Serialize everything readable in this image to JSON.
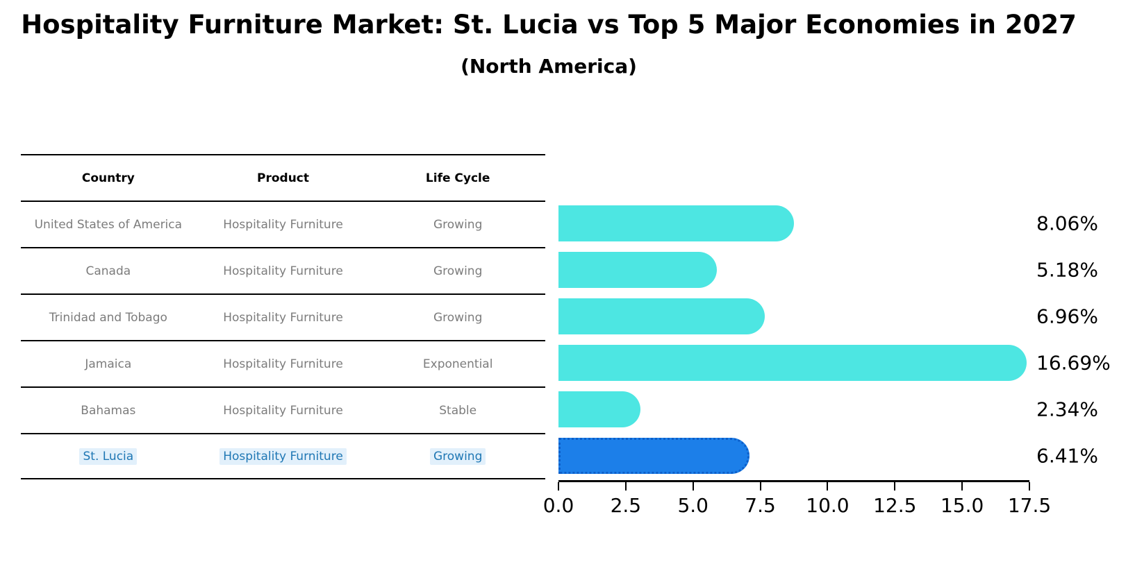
{
  "title": "Hospitality Furniture Market: St. Lucia vs Top 5 Major Economies in 2027",
  "subtitle": "(North America)",
  "table": {
    "headers": [
      "Country",
      "Product",
      "Life Cycle"
    ],
    "rows": [
      {
        "country": "United States of America",
        "product": "Hospitality Furniture",
        "life_cycle": "Growing",
        "highlight": false
      },
      {
        "country": "Canada",
        "product": "Hospitality Furniture",
        "life_cycle": "Growing",
        "highlight": false
      },
      {
        "country": "Trinidad and Tobago",
        "product": "Hospitality Furniture",
        "life_cycle": "Growing",
        "highlight": false
      },
      {
        "country": "Jamaica",
        "product": "Hospitality Furniture",
        "life_cycle": "Exponential",
        "highlight": false
      },
      {
        "country": "Bahamas",
        "product": "Hospitality Furniture",
        "life_cycle": "Stable",
        "highlight": false
      },
      {
        "country": "St. Lucia",
        "product": "Hospitality Furniture",
        "life_cycle": "Growing",
        "highlight": true
      }
    ]
  },
  "chart_data": {
    "type": "bar",
    "orientation": "horizontal",
    "categories": [
      "United States of America",
      "Canada",
      "Trinidad and Tobago",
      "Jamaica",
      "Bahamas",
      "St. Lucia"
    ],
    "values": [
      8.06,
      5.18,
      6.96,
      16.69,
      2.34,
      6.41
    ],
    "value_labels": [
      "8.06%",
      "5.18%",
      "6.96%",
      "16.69%",
      "2.34%",
      "6.41%"
    ],
    "xlim": [
      0,
      17.5
    ],
    "x_tick_labels": [
      "0.0",
      "2.5",
      "5.0",
      "7.5",
      "10.0",
      "12.5",
      "15.0",
      "17.5"
    ],
    "grid": false,
    "legend": false,
    "bar_color": "#4de6e2",
    "highlight_bar_color": "#1c7fe9",
    "highlight_border_color": "#0d5fc9",
    "highlight_index": 5,
    "highlight_text_color": "#1f77b4",
    "table_text_color": "#7c7c7c"
  }
}
